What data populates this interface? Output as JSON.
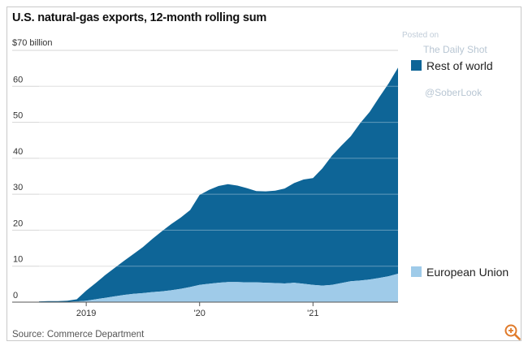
{
  "header": {
    "title": "U.S. natural-gas exports, 12-month rolling sum",
    "unit_label": "$70 billion"
  },
  "footer": {
    "source": "Source: Commerce Department"
  },
  "watermark": {
    "posted_on": "Posted on",
    "publisher": "The Daily Shot",
    "handle": "@SoberLook"
  },
  "icons": {
    "zoom": "zoom-in-icon"
  },
  "colors": {
    "rest_of_world": "#0e6597",
    "european_union": "#9fcbe9",
    "zoom_icon": "#e07a2a"
  },
  "chart_data": {
    "type": "area",
    "stacked": true,
    "title": "U.S. natural-gas exports, 12-month rolling sum",
    "ylabel": "$70 billion",
    "ylim": [
      0,
      70
    ],
    "yticks": [
      0,
      10,
      20,
      30,
      40,
      50,
      60,
      70
    ],
    "ytick_labels": [
      "0",
      "10",
      "20",
      "30",
      "40",
      "50",
      "60",
      "$70 billion"
    ],
    "xlim": [
      "2018-08",
      "2021-10"
    ],
    "xticks": [
      "2019-01",
      "2020-01",
      "2021-01"
    ],
    "xtick_labels": [
      "2019",
      "'20",
      "'21"
    ],
    "grid": "horizontal",
    "legend": "right, labels at end of areas",
    "x": [
      "2018-08",
      "2018-09",
      "2018-10",
      "2018-11",
      "2018-12",
      "2019-01",
      "2019-02",
      "2019-03",
      "2019-04",
      "2019-05",
      "2019-06",
      "2019-07",
      "2019-08",
      "2019-09",
      "2019-10",
      "2019-11",
      "2019-12",
      "2020-01",
      "2020-02",
      "2020-03",
      "2020-04",
      "2020-05",
      "2020-06",
      "2020-07",
      "2020-08",
      "2020-09",
      "2020-10",
      "2020-11",
      "2020-12",
      "2021-01",
      "2021-02",
      "2021-03",
      "2021-04",
      "2021-05",
      "2021-06",
      "2021-07",
      "2021-08",
      "2021-09",
      "2021-10"
    ],
    "series": [
      {
        "name": "European Union",
        "values": [
          0.1,
          0.1,
          0.1,
          0.1,
          0.2,
          0.4,
          0.8,
          1.2,
          1.6,
          2.0,
          2.3,
          2.5,
          2.8,
          3.0,
          3.3,
          3.7,
          4.2,
          4.8,
          5.1,
          5.4,
          5.6,
          5.6,
          5.5,
          5.5,
          5.4,
          5.3,
          5.2,
          5.4,
          5.1,
          4.8,
          4.6,
          4.8,
          5.3,
          5.8,
          6.0,
          6.3,
          6.7,
          7.2,
          7.9
        ]
      },
      {
        "name": "Rest of world",
        "values": [
          0.1,
          0.2,
          0.2,
          0.3,
          0.6,
          2.8,
          4.5,
          6.3,
          7.9,
          9.5,
          11.1,
          12.8,
          14.8,
          16.7,
          18.4,
          19.8,
          21.4,
          25.0,
          26.1,
          26.9,
          27.2,
          26.8,
          26.2,
          25.4,
          25.4,
          25.7,
          26.4,
          27.7,
          29.0,
          29.7,
          32.6,
          35.9,
          38.2,
          40.3,
          43.8,
          46.6,
          50.2,
          53.6,
          57.3
        ]
      }
    ]
  }
}
